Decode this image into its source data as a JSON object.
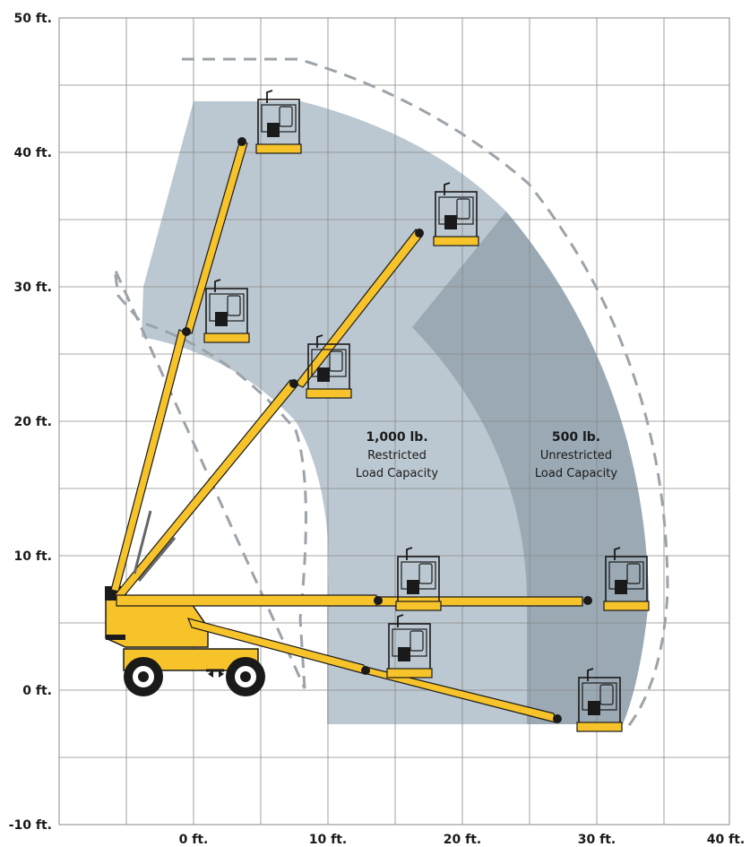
{
  "chart_data": {
    "type": "working-range-diagram",
    "x_unit": "ft.",
    "y_unit": "ft.",
    "xlim": [
      -10,
      40
    ],
    "ylim": [
      -10,
      50
    ],
    "grid": true,
    "x_ticks": [
      {
        "value": 0,
        "label": "0 ft."
      },
      {
        "value": 10,
        "label": "10 ft."
      },
      {
        "value": 20,
        "label": "20 ft."
      },
      {
        "value": 30,
        "label": "30 ft."
      },
      {
        "value": 40,
        "label": "40 ft."
      }
    ],
    "y_ticks": [
      {
        "value": 50,
        "label": "50 ft."
      },
      {
        "value": 40,
        "label": "40 ft."
      },
      {
        "value": 30,
        "label": "30 ft."
      },
      {
        "value": 20,
        "label": "20 ft."
      },
      {
        "value": 10,
        "label": "10 ft."
      },
      {
        "value": 0,
        "label": "0 ft."
      },
      {
        "value": -10,
        "label": "-10 ft."
      }
    ],
    "zones": [
      {
        "name": "restricted",
        "title": "1,000 lb.",
        "line1": "Restricted",
        "line2": "Load Capacity",
        "color": "#bcc8d1"
      },
      {
        "name": "unrestricted",
        "title": "500 lb.",
        "line1": "Unrestricted",
        "line2": "Load Capacity",
        "color": "#9aa9b4"
      }
    ],
    "colors": {
      "machine": "#f6c32a",
      "machine_outline": "#1a1a1a",
      "envelope_dash": "#9ca3a9",
      "grid": "#8a8a8a"
    }
  }
}
